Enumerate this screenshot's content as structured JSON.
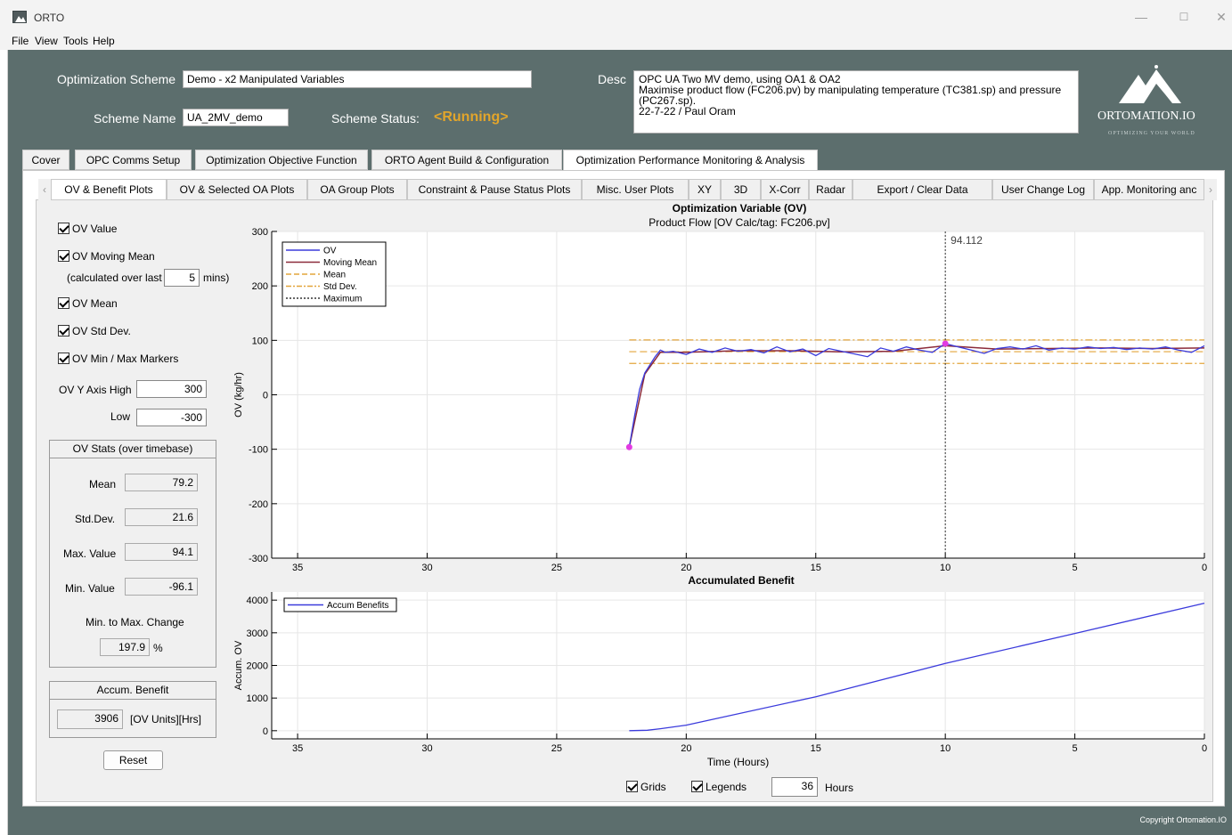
{
  "window": {
    "title": "ORTO",
    "minimize_glyph": "—",
    "maximize_glyph": "☐",
    "close_glyph": "✕"
  },
  "menu": [
    "File",
    "View",
    "Tools",
    "Help"
  ],
  "header": {
    "scheme_label": "Optimization Scheme",
    "scheme_value": "Demo - x2 Manipulated Variables",
    "name_label": "Scheme Name",
    "name_value": "UA_2MV_demo",
    "status_label": "Scheme Status:",
    "status_value": "<Running>",
    "desc_label": "Desc",
    "desc_lines": [
      "OPC UA Two MV demo, using OA1 & OA2",
      "Maximise product flow (FC206.pv) by manipulating temperature (TC381.sp) and pressure",
      "(PC267.sp).",
      "22-7-22 / Paul Oram"
    ],
    "logo_text": "ORTOMATION.IO",
    "logo_sub": "OPTIMIZING YOUR WORLD"
  },
  "main_tabs": [
    "Cover",
    "OPC Comms Setup",
    "Optimization Objective Function",
    "ORTO Agent Build & Configuration",
    "Optimization Performance Monitoring & Analysis"
  ],
  "sub_tabs": [
    "OV & Benefit Plots",
    "OV & Selected OA Plots",
    "OA Group Plots",
    "Constraint & Pause Status Plots",
    "Misc. User Plots",
    "XY",
    "3D",
    "X-Corr",
    "Radar",
    "Export / Clear Data",
    "User Change Log",
    "App. Monitoring anc"
  ],
  "left": {
    "cb_ov_value": "OV Value",
    "cb_moving_mean": "OV Moving Mean",
    "calc_over_label": "(calculated over last",
    "calc_over_value": "5",
    "calc_over_unit": "mins)",
    "cb_ov_mean": "OV Mean",
    "cb_ov_std": "OV Std Dev.",
    "cb_minmax": "OV Min / Max Markers",
    "y_high_label": "OV Y Axis High",
    "y_high_value": "300",
    "y_low_label": "Low",
    "y_low_value": "-300",
    "stats_title": "OV Stats (over timebase)",
    "mean_label": "Mean",
    "mean_value": "79.2",
    "std_label": "Std.Dev.",
    "std_value": "21.6",
    "max_label": "Max. Value",
    "max_value": "94.1",
    "min_label": "Min. Value",
    "min_value": "-96.1",
    "change_label": "Min. to Max. Change",
    "change_value": "197.9",
    "change_unit": "%",
    "accum_title": "Accum. Benefit",
    "accum_value": "3906",
    "accum_unit": "[OV Units][Hrs]",
    "reset_label": "Reset"
  },
  "bottom": {
    "grids_label": "Grids",
    "legends_label": "Legends",
    "hours_value": "36",
    "hours_label": "Hours"
  },
  "copyright": "Copyright Ortomation.IO",
  "colors": {
    "frame": "#5c6e6d",
    "status": "#e2a52b",
    "ov_line": "#3b3bdc",
    "moving_mean": "#8b2b3b",
    "mean_line": "#e3a53b",
    "max_marker": "#e23be2"
  },
  "chart_data": [
    {
      "type": "line",
      "title": "Optimization Variable (OV)",
      "subtitle": "Product Flow [OV Calc/tag: FC206.pv]",
      "ylabel": "OV (kg/hr)",
      "xlim": [
        36,
        0
      ],
      "ylim": [
        -300,
        300
      ],
      "xticks": [
        35,
        30,
        25,
        20,
        15,
        10,
        5,
        0
      ],
      "yticks": [
        300,
        200,
        100,
        0,
        -100,
        -200,
        -300
      ],
      "grid": true,
      "legend_position": "top-left",
      "legend": [
        "OV",
        "Moving Mean",
        "Mean",
        "Std Dev.",
        "Maximum"
      ],
      "series": [
        {
          "name": "OV",
          "x": [
            22.2,
            22.0,
            21.8,
            21.6,
            21.4,
            21.2,
            21.0,
            20.8,
            20.5,
            20.0,
            19.5,
            19.0,
            18.5,
            18.0,
            17.5,
            17.0,
            16.5,
            16.0,
            15.5,
            15.0,
            14.5,
            14.0,
            13.5,
            13.0,
            12.5,
            12.0,
            11.5,
            11.0,
            10.5,
            10.0,
            9.5,
            9.0,
            8.5,
            8.0,
            7.5,
            7.0,
            6.5,
            6.0,
            5.5,
            5.0,
            4.5,
            4.0,
            3.5,
            3.0,
            2.5,
            2.0,
            1.5,
            1.0,
            0.5,
            0.0
          ],
          "y": [
            -96,
            -40,
            10,
            40,
            55,
            70,
            82,
            78,
            80,
            74,
            84,
            78,
            86,
            80,
            83,
            77,
            88,
            79,
            84,
            72,
            85,
            80,
            75,
            70,
            86,
            80,
            88,
            82,
            78,
            94,
            88,
            82,
            76,
            85,
            88,
            84,
            90,
            82,
            86,
            84,
            88,
            85,
            87,
            83,
            86,
            84,
            88,
            82,
            78,
            90
          ]
        },
        {
          "name": "Moving Mean",
          "x": [
            22.2,
            21.6,
            21.0,
            20.0,
            18.0,
            16.0,
            14.0,
            12.0,
            10.0,
            8.0,
            6.0,
            4.0,
            2.0,
            0.0
          ],
          "y": [
            -96,
            38,
            78,
            78,
            81,
            81,
            79,
            80,
            90,
            84,
            85,
            86,
            85,
            86
          ]
        },
        {
          "name": "Mean",
          "value": 79.2
        },
        {
          "name": "Std Dev.",
          "upper": 100.8,
          "lower": 57.6
        },
        {
          "name": "Maximum",
          "x": 10.0,
          "value": 94.1,
          "label": "94.112"
        }
      ]
    },
    {
      "type": "line",
      "title": "Accumulated Benefit",
      "xlabel": "Time (Hours)",
      "ylabel": "Accum. OV",
      "xlim": [
        36,
        0
      ],
      "ylim": [
        -250,
        4250
      ],
      "xticks": [
        35,
        30,
        25,
        20,
        15,
        10,
        5,
        0
      ],
      "yticks": [
        4000,
        3000,
        2000,
        1000,
        0
      ],
      "grid": true,
      "legend_position": "top-left",
      "legend": [
        "Accum Benefits"
      ],
      "series": [
        {
          "name": "Accum Benefits",
          "x": [
            22.2,
            21.5,
            21.0,
            20.0,
            15.0,
            10.0,
            5.0,
            0.0
          ],
          "y": [
            0,
            15,
            60,
            170,
            1040,
            2060,
            2980,
            3906
          ]
        }
      ]
    }
  ]
}
